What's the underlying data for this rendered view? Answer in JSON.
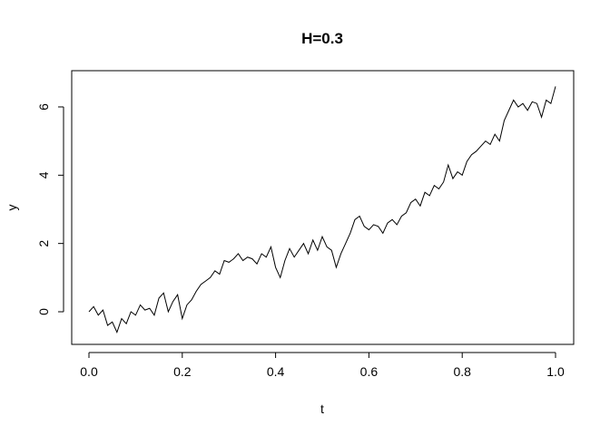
{
  "chart_data": {
    "type": "line",
    "title": "H=0.3",
    "xlabel": "t",
    "ylabel": "y",
    "xlim": [
      0.0,
      1.0
    ],
    "ylim": [
      -0.7,
      6.8
    ],
    "x_ticks": [
      0.0,
      0.2,
      0.4,
      0.6,
      0.8,
      1.0
    ],
    "x_tick_labels": [
      "0.0",
      "0.2",
      "0.4",
      "0.6",
      "0.8",
      "1.0"
    ],
    "y_ticks": [
      0,
      2,
      4,
      6
    ],
    "y_tick_labels": [
      "0",
      "2",
      "4",
      "6"
    ],
    "grid": false,
    "line_color": "#000000",
    "series": [
      {
        "x": [
          0.0,
          0.01,
          0.02,
          0.03,
          0.04,
          0.05,
          0.06,
          0.07,
          0.08,
          0.09,
          0.1,
          0.11,
          0.12,
          0.13,
          0.14,
          0.15,
          0.16,
          0.17,
          0.18,
          0.19,
          0.2,
          0.21,
          0.22,
          0.23,
          0.24,
          0.25,
          0.26,
          0.27,
          0.28,
          0.29,
          0.3,
          0.31,
          0.32,
          0.33,
          0.34,
          0.35,
          0.36,
          0.37,
          0.38,
          0.39,
          0.4,
          0.41,
          0.42,
          0.43,
          0.44,
          0.45,
          0.46,
          0.47,
          0.48,
          0.49,
          0.5,
          0.51,
          0.52,
          0.53,
          0.54,
          0.55,
          0.56,
          0.57,
          0.58,
          0.59,
          0.6,
          0.61,
          0.62,
          0.63,
          0.64,
          0.65,
          0.66,
          0.67,
          0.68,
          0.69,
          0.7,
          0.71,
          0.72,
          0.73,
          0.74,
          0.75,
          0.76,
          0.77,
          0.78,
          0.79,
          0.8,
          0.81,
          0.82,
          0.83,
          0.84,
          0.85,
          0.86,
          0.87,
          0.88,
          0.89,
          0.9,
          0.91,
          0.92,
          0.93,
          0.94,
          0.95,
          0.96,
          0.97,
          0.98,
          0.99,
          1.0
        ],
        "y": [
          0.0,
          0.15,
          -0.1,
          0.05,
          -0.4,
          -0.3,
          -0.6,
          -0.2,
          -0.35,
          0.0,
          -0.1,
          0.2,
          0.05,
          0.1,
          -0.1,
          0.4,
          0.55,
          0.0,
          0.3,
          0.5,
          -0.2,
          0.2,
          0.35,
          0.6,
          0.8,
          0.9,
          1.0,
          1.2,
          1.1,
          1.5,
          1.45,
          1.55,
          1.7,
          1.5,
          1.6,
          1.55,
          1.4,
          1.7,
          1.6,
          1.9,
          1.3,
          1.0,
          1.5,
          1.85,
          1.6,
          1.8,
          2.0,
          1.7,
          2.1,
          1.8,
          2.2,
          1.9,
          1.8,
          1.3,
          1.7,
          2.0,
          2.3,
          2.7,
          2.8,
          2.5,
          2.4,
          2.55,
          2.5,
          2.3,
          2.6,
          2.7,
          2.55,
          2.8,
          2.9,
          3.2,
          3.3,
          3.1,
          3.5,
          3.4,
          3.7,
          3.6,
          3.8,
          4.3,
          3.9,
          4.1,
          4.0,
          4.4,
          4.6,
          4.7,
          4.85,
          5.0,
          4.9,
          5.2,
          5.0,
          5.6,
          5.9,
          6.2,
          6.0,
          6.1,
          5.9,
          6.15,
          6.1,
          5.7,
          6.2,
          6.1,
          6.6
        ]
      }
    ]
  }
}
